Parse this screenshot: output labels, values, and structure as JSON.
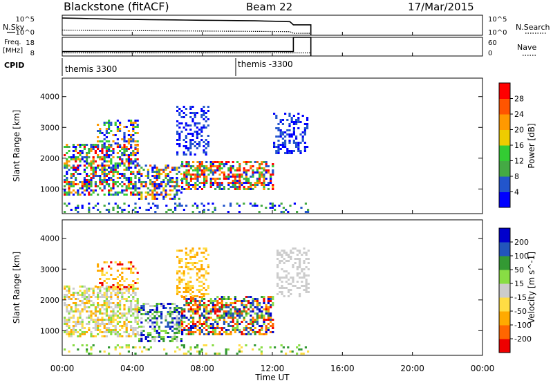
{
  "header": {
    "title": "Blackstone (fitACF)",
    "beam": "Beam 22",
    "date": "17/Mar/2015"
  },
  "top_panel": {
    "nsky_label": "N.Sky",
    "nsearch_label": "N.Search",
    "left_ticks": [
      "10^5",
      "10^0"
    ],
    "right_ticks": [
      "10^5",
      "10^0"
    ]
  },
  "freq_panel": {
    "freq_label": "Freq.",
    "freq_unit": "[MHz]",
    "nave_label": "Nave",
    "left_ticks": [
      "18",
      "8"
    ],
    "right_ticks": [
      "60",
      "0"
    ]
  },
  "cpid": {
    "label": "CPID",
    "segments": [
      {
        "text": "themis 3300",
        "start_hour": 0.0
      },
      {
        "text": "themis -3300",
        "start_hour": 10.0
      }
    ]
  },
  "colors": {
    "power": [
      "#0000ff",
      "#2255cc",
      "#44aa44",
      "#33cc33",
      "#eecc00",
      "#ff9900",
      "#ff5500",
      "#ff0000"
    ],
    "velocity": [
      "#ee0000",
      "#ff6600",
      "#ffaa00",
      "#ffdd44",
      "#cccccc",
      "#88dd44",
      "#339933",
      "#2255bb",
      "#0000cc"
    ]
  },
  "chart_data": [
    {
      "type": "line",
      "panel": "noise",
      "x_unit": "hours UT",
      "yscale": "log",
      "series": [
        {
          "name": "N.Sky",
          "style": "solid",
          "x": [
            0.0,
            1.0,
            2.0,
            3.0,
            4.0,
            5.0,
            6.0,
            7.0,
            8.0,
            9.0,
            10.0,
            11.0,
            12.0,
            13.0,
            13.2,
            14.2
          ],
          "y_frac": [
            0.86,
            0.84,
            0.82,
            0.8,
            0.79,
            0.78,
            0.77,
            0.76,
            0.75,
            0.74,
            0.73,
            0.72,
            0.7,
            0.68,
            0.52,
            0.52
          ]
        },
        {
          "name": "N.Search",
          "style": "dotted",
          "x": [
            0.0,
            2.0,
            4.0,
            6.0,
            8.0,
            10.0,
            12.0,
            13.0,
            13.2,
            14.2
          ],
          "y_frac": [
            0.26,
            0.24,
            0.23,
            0.22,
            0.21,
            0.2,
            0.19,
            0.18,
            0.1,
            0.1
          ]
        }
      ]
    },
    {
      "type": "line",
      "panel": "frequency",
      "x_unit": "hours UT",
      "series": [
        {
          "name": "Freq.",
          "style": "solid",
          "axis": "left",
          "x": [
            0.0,
            13.2,
            13.2,
            14.2
          ],
          "y": [
            10.4,
            10.4,
            18.0,
            18.0
          ]
        },
        {
          "name": "Nave",
          "style": "dotted",
          "axis": "right",
          "x": [
            0.0,
            13.2,
            13.2,
            14.2
          ],
          "y": [
            10,
            10,
            10,
            10
          ]
        }
      ]
    },
    {
      "type": "heatmap",
      "panel": "power",
      "ylabel": "Slant Range [km]",
      "y_ticks": [
        "4000",
        "3000",
        "2000",
        "1000"
      ],
      "ylim": [
        200,
        4600
      ],
      "colorbar_label": "Power [dB]",
      "colorbar_ticks": [
        "28",
        "24",
        "20",
        "16",
        "12",
        "8",
        "4"
      ],
      "data_hours": [
        0.0,
        14.2
      ]
    },
    {
      "type": "heatmap",
      "panel": "velocity",
      "ylabel": "Slant Range [km]",
      "y_ticks": [
        "4000",
        "3000",
        "2000",
        "1000"
      ],
      "ylim": [
        200,
        4600
      ],
      "colorbar_label": "Velocity [m s^-1]",
      "colorbar_ticks": [
        "200",
        "100",
        "50",
        "15",
        "-15",
        "-50",
        "-100",
        "-200"
      ],
      "data_hours": [
        0.0,
        14.2
      ]
    },
    {
      "type": "axis",
      "xlabel": "Time UT",
      "x_ticks": [
        "00:00",
        "04:00",
        "08:00",
        "12:00",
        "16:00",
        "20:00",
        "00:00"
      ],
      "xlim_hours": [
        0,
        24
      ]
    }
  ]
}
